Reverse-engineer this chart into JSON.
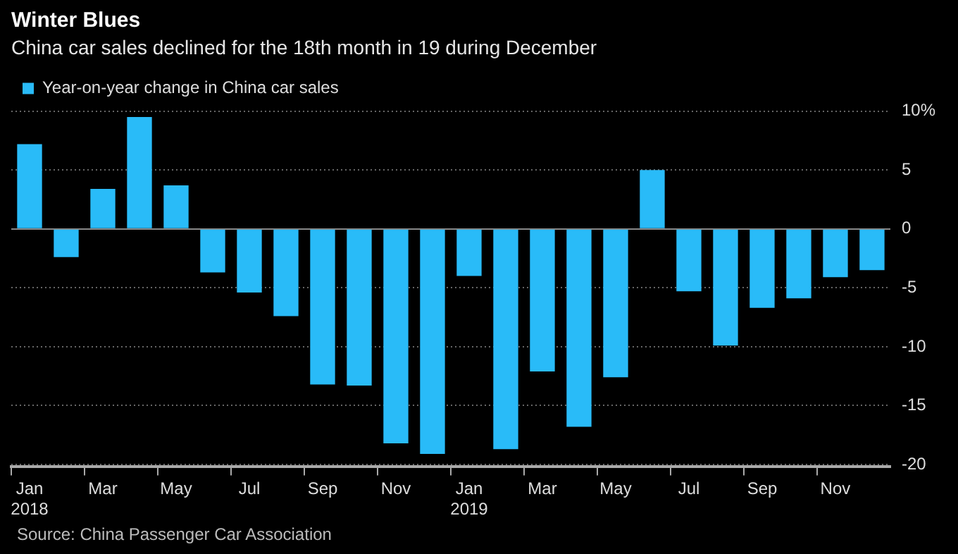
{
  "chart_data": {
    "type": "bar",
    "title": "Winter Blues",
    "subtitle": "China car sales declined for the 18th month in 19 during December",
    "categories": [
      "Jan\n2018",
      null,
      "Mar",
      null,
      "May",
      null,
      "Jul",
      null,
      "Sep",
      null,
      "Nov",
      null,
      "Jan\n2019",
      null,
      "Mar",
      null,
      "May",
      null,
      "Jul",
      null,
      "Sep",
      null,
      "Nov",
      null
    ],
    "series": [
      {
        "name": "Year-on-year change in China car sales",
        "color": "#29bbf8",
        "values": [
          7.2,
          -2.4,
          3.4,
          9.5,
          3.7,
          -3.7,
          -5.4,
          -7.4,
          -13.2,
          -13.3,
          -18.2,
          -19.1,
          -4.0,
          -18.7,
          -12.1,
          -16.8,
          -12.6,
          5.0,
          -5.3,
          -9.9,
          -6.7,
          -5.9,
          -4.1,
          -3.5
        ]
      }
    ],
    "ylim": [
      -20.2,
      10
    ],
    "yticks": [
      {
        "value": 10,
        "label": "10%"
      },
      5,
      0,
      -5,
      -10,
      -15,
      -20
    ],
    "grid": "y",
    "legend": "top left",
    "annotations": [
      "Source: China Passenger Car Association"
    ]
  }
}
